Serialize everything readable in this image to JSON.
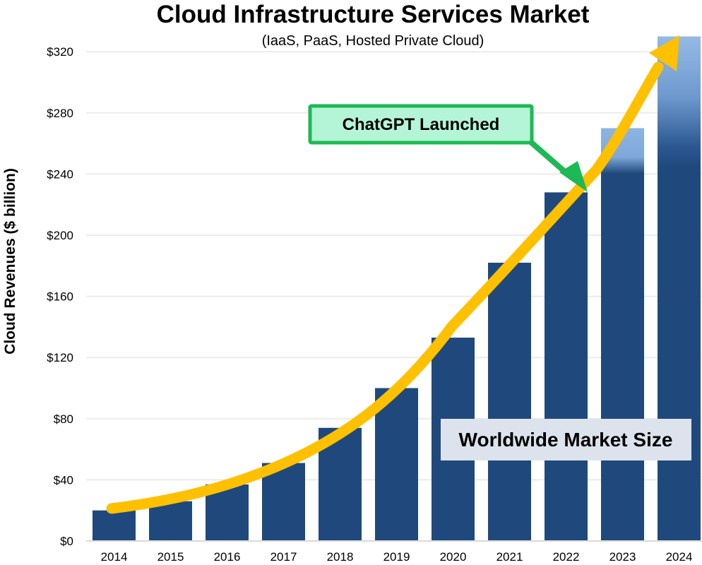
{
  "chart_data": {
    "type": "bar",
    "title": "Cloud Infrastructure Services Market",
    "subtitle": "(IaaS, PaaS, Hosted Private Cloud)",
    "xlabel": "",
    "ylabel": "Cloud Revenues ($ billion)",
    "categories": [
      "2014",
      "2015",
      "2016",
      "2017",
      "2018",
      "2019",
      "2020",
      "2021",
      "2022",
      "2023",
      "2024"
    ],
    "series": [
      {
        "name": "Worldwide Market Size",
        "values": [
          20,
          26,
          37,
          51,
          74,
          100,
          133,
          182,
          228,
          270,
          330
        ],
        "projected": [
          false,
          false,
          false,
          false,
          false,
          false,
          false,
          false,
          false,
          true,
          true
        ]
      }
    ],
    "ylim": [
      0,
      330
    ],
    "yticks": [
      0,
      40,
      80,
      120,
      160,
      200,
      240,
      280,
      320
    ],
    "ytick_labels": [
      "$0",
      "$40",
      "$80",
      "$120",
      "$160",
      "$200",
      "$240",
      "$280",
      "$320"
    ],
    "grid": true,
    "annotations": [
      {
        "text": "ChatGPT Launched",
        "target_category": "2022",
        "kind": "callout"
      },
      {
        "text": "Worldwide Market Size",
        "kind": "label"
      }
    ],
    "trend_arrow": {
      "description": "growth trend",
      "from_category": "2014",
      "to_category": "2024"
    },
    "colors": {
      "bar": "#1F497D",
      "bar_projected_top": "#8DB4E2",
      "trend": "#FFC000",
      "callout_fill": "#B3F5D6",
      "callout_border": "#1DB954",
      "label_fill": "#DDE3EC",
      "grid": "#EBEBEB"
    }
  }
}
